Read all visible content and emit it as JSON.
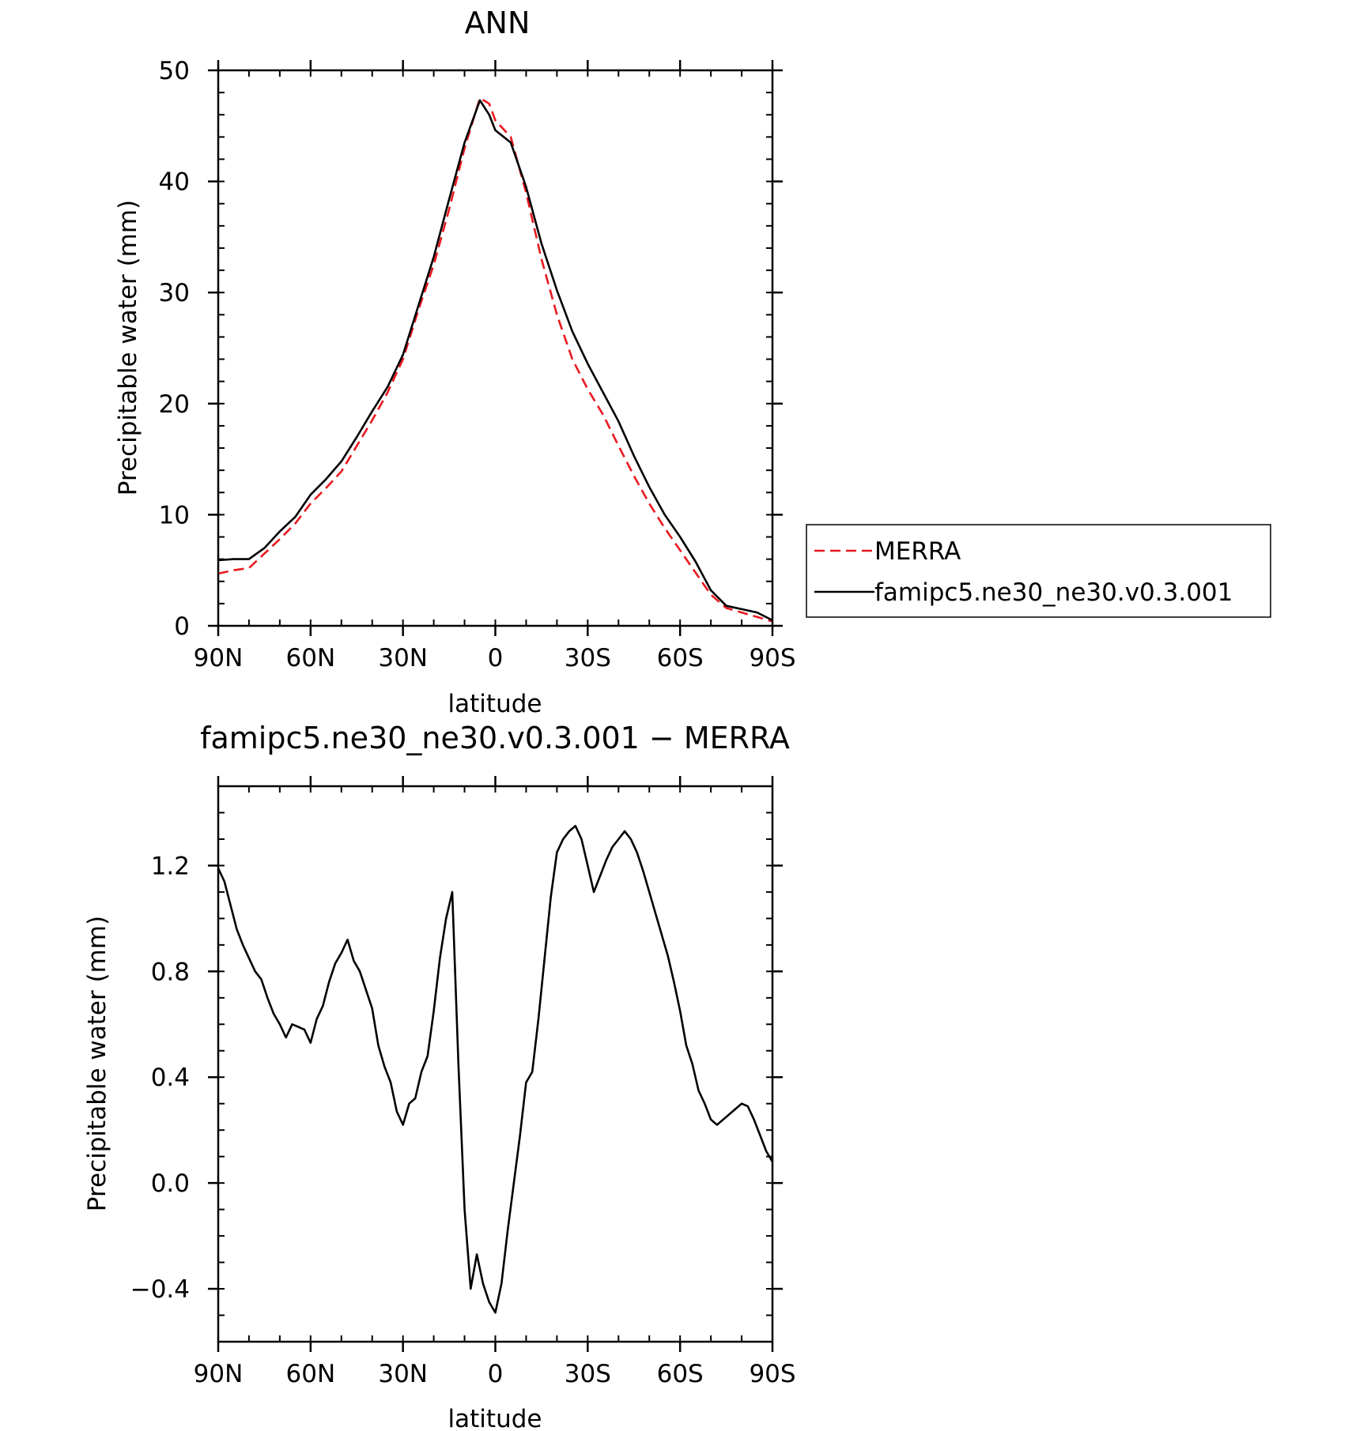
{
  "chart_data": [
    {
      "type": "line",
      "title": "ANN",
      "xlabel": "latitude",
      "ylabel": "Precipitable water (mm)",
      "xlim": [
        90,
        -90
      ],
      "ylim": [
        0,
        50
      ],
      "xticks": [
        {
          "value": 90,
          "label": "90N"
        },
        {
          "value": 60,
          "label": "60N"
        },
        {
          "value": 30,
          "label": "30N"
        },
        {
          "value": 0,
          "label": "0"
        },
        {
          "value": -30,
          "label": "30S"
        },
        {
          "value": -60,
          "label": "60S"
        },
        {
          "value": -90,
          "label": "90S"
        }
      ],
      "yticks": [
        {
          "value": 0,
          "label": "0"
        },
        {
          "value": 10,
          "label": "10"
        },
        {
          "value": 20,
          "label": "20"
        },
        {
          "value": 30,
          "label": "30"
        },
        {
          "value": 40,
          "label": "40"
        },
        {
          "value": 50,
          "label": "50"
        }
      ],
      "legend": {
        "position": "right",
        "entries": [
          {
            "label": "MERRA",
            "color": "#e8191f",
            "dash": "dashed"
          },
          {
            "label": "famipc5.ne30_ne30.v0.3.001",
            "color": "#000000",
            "dash": "solid"
          }
        ]
      },
      "series": [
        {
          "name": "MERRA",
          "color": "#e8191f",
          "dash": "dashed",
          "x": [
            90,
            85,
            80,
            75,
            70,
            65,
            60,
            55,
            50,
            45,
            40,
            35,
            30,
            25,
            20,
            15,
            10,
            5,
            2,
            0,
            -5,
            -10,
            -15,
            -20,
            -25,
            -30,
            -35,
            -40,
            -45,
            -50,
            -55,
            -60,
            -65,
            -70,
            -75,
            -80,
            -85,
            -90
          ],
          "y": [
            4.7,
            5.0,
            5.2,
            6.5,
            7.8,
            9.2,
            11.0,
            12.4,
            13.9,
            16.2,
            18.5,
            21.0,
            24.0,
            28.4,
            32.5,
            37.5,
            43.0,
            47.5,
            47.0,
            45.5,
            44.0,
            39.0,
            33.0,
            28.0,
            24.0,
            21.3,
            19.0,
            16.2,
            13.5,
            11.0,
            8.8,
            6.8,
            4.8,
            2.8,
            1.6,
            1.2,
            0.8,
            0.4
          ]
        },
        {
          "name": "famipc5.ne30_ne30.v0.3.001",
          "color": "#000000",
          "dash": "solid",
          "x": [
            90,
            85,
            80,
            75,
            70,
            65,
            60,
            55,
            50,
            45,
            40,
            35,
            30,
            25,
            20,
            15,
            10,
            5,
            2,
            0,
            -5,
            -10,
            -15,
            -20,
            -25,
            -30,
            -35,
            -40,
            -45,
            -50,
            -55,
            -60,
            -65,
            -70,
            -75,
            -80,
            -85,
            -90
          ],
          "y": [
            5.9,
            6.0,
            6.0,
            7.0,
            8.5,
            9.8,
            11.8,
            13.2,
            14.8,
            17.0,
            19.3,
            21.5,
            24.4,
            28.8,
            33.2,
            38.4,
            43.5,
            47.3,
            46.0,
            44.6,
            43.5,
            39.5,
            34.4,
            30.2,
            26.5,
            23.6,
            21.0,
            18.4,
            15.3,
            12.5,
            10.0,
            8.0,
            5.8,
            3.2,
            1.8,
            1.5,
            1.2,
            0.5
          ]
        }
      ]
    },
    {
      "type": "line",
      "title": "famipc5.ne30_ne30.v0.3.001 − MERRA",
      "xlabel": "latitude",
      "ylabel": "Precipitable water (mm)",
      "xlim": [
        90,
        -90
      ],
      "ylim": [
        -0.6,
        1.5
      ],
      "xticks": [
        {
          "value": 90,
          "label": "90N"
        },
        {
          "value": 60,
          "label": "60N"
        },
        {
          "value": 30,
          "label": "30N"
        },
        {
          "value": 0,
          "label": "0"
        },
        {
          "value": -30,
          "label": "30S"
        },
        {
          "value": -60,
          "label": "60S"
        },
        {
          "value": -90,
          "label": "90S"
        }
      ],
      "yticks": [
        {
          "value": -0.4,
          "label": "−0.4"
        },
        {
          "value": 0.0,
          "label": "0.0"
        },
        {
          "value": 0.4,
          "label": "0.4"
        },
        {
          "value": 0.8,
          "label": "0.8"
        },
        {
          "value": 1.2,
          "label": "1.2"
        }
      ],
      "series": [
        {
          "color": "#000000",
          "dash": "solid",
          "x": [
            90,
            88,
            86,
            84,
            82,
            80,
            78,
            76,
            74,
            72,
            70,
            68,
            66,
            64,
            62,
            60,
            58,
            56,
            54,
            52,
            50,
            48,
            46,
            44,
            42,
            40,
            38,
            36,
            34,
            32,
            30,
            28,
            26,
            24,
            22,
            20,
            18,
            16,
            14,
            12,
            10,
            8,
            6,
            4,
            2,
            0,
            -2,
            -4,
            -6,
            -8,
            -10,
            -12,
            -14,
            -16,
            -18,
            -20,
            -22,
            -24,
            -26,
            -28,
            -30,
            -32,
            -34,
            -36,
            -38,
            -40,
            -42,
            -44,
            -46,
            -48,
            -50,
            -52,
            -54,
            -56,
            -58,
            -60,
            -62,
            -64,
            -66,
            -68,
            -70,
            -72,
            -74,
            -76,
            -78,
            -80,
            -82,
            -84,
            -86,
            -88,
            -90
          ],
          "y": [
            1.19,
            1.14,
            1.05,
            0.96,
            0.9,
            0.85,
            0.8,
            0.77,
            0.7,
            0.64,
            0.6,
            0.55,
            0.6,
            0.59,
            0.58,
            0.53,
            0.62,
            0.67,
            0.76,
            0.83,
            0.87,
            0.92,
            0.84,
            0.8,
            0.73,
            0.66,
            0.52,
            0.44,
            0.38,
            0.27,
            0.22,
            0.3,
            0.32,
            0.42,
            0.48,
            0.65,
            0.85,
            1.0,
            1.1,
            0.45,
            -0.1,
            -0.4,
            -0.27,
            -0.38,
            -0.45,
            -0.49,
            -0.38,
            -0.18,
            0.0,
            0.18,
            0.38,
            0.42,
            0.62,
            0.85,
            1.08,
            1.25,
            1.3,
            1.33,
            1.35,
            1.3,
            1.2,
            1.1,
            1.16,
            1.22,
            1.27,
            1.3,
            1.33,
            1.3,
            1.25,
            1.18,
            1.1,
            1.02,
            0.94,
            0.86,
            0.76,
            0.65,
            0.52,
            0.45,
            0.35,
            0.3,
            0.24,
            0.22,
            0.24,
            0.26,
            0.28,
            0.3,
            0.29,
            0.24,
            0.18,
            0.12,
            0.08
          ]
        }
      ]
    }
  ]
}
